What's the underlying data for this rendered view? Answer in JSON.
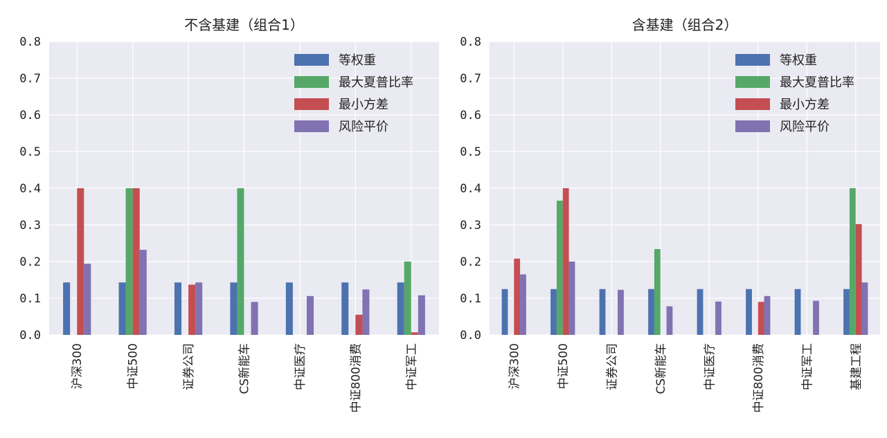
{
  "chart_data": [
    {
      "type": "bar",
      "title": "不含基建（组合1）",
      "categories": [
        "沪深300",
        "中证500",
        "证券公司",
        "CS新能车",
        "中证医疗",
        "中证800消费",
        "中证军工"
      ],
      "series": [
        {
          "name": "等权重",
          "color": "#4c72b0",
          "values": [
            0.143,
            0.143,
            0.143,
            0.143,
            0.143,
            0.143,
            0.143
          ]
        },
        {
          "name": "最大夏普比率",
          "color": "#55a868",
          "values": [
            0.0,
            0.4,
            0.0,
            0.4,
            0.0,
            0.0,
            0.2
          ]
        },
        {
          "name": "最小方差",
          "color": "#c44e52",
          "values": [
            0.4,
            0.4,
            0.137,
            0.0,
            0.0,
            0.055,
            0.007
          ]
        },
        {
          "name": "风险平价",
          "color": "#8172b2",
          "values": [
            0.194,
            0.232,
            0.143,
            0.09,
            0.106,
            0.124,
            0.108
          ]
        }
      ],
      "ylim": [
        0,
        0.8
      ],
      "yticks": [
        "0.0",
        "0.1",
        "0.2",
        "0.3",
        "0.4",
        "0.5",
        "0.6",
        "0.7",
        "0.8"
      ],
      "grid": true,
      "legend": "top-right"
    },
    {
      "type": "bar",
      "title": "含基建（组合2）",
      "categories": [
        "沪深300",
        "中证500",
        "证券公司",
        "CS新能车",
        "中证医疗",
        "中证800消费",
        "中证军工",
        "基建工程"
      ],
      "series": [
        {
          "name": "等权重",
          "color": "#4c72b0",
          "values": [
            0.125,
            0.125,
            0.125,
            0.125,
            0.125,
            0.125,
            0.125,
            0.125
          ]
        },
        {
          "name": "最大夏普比率",
          "color": "#55a868",
          "values": [
            0.0,
            0.366,
            0.0,
            0.234,
            0.0,
            0.0,
            0.0,
            0.4
          ]
        },
        {
          "name": "最小方差",
          "color": "#c44e52",
          "values": [
            0.208,
            0.4,
            0.0,
            0.0,
            0.0,
            0.09,
            0.0,
            0.302
          ]
        },
        {
          "name": "风险平价",
          "color": "#8172b2",
          "values": [
            0.165,
            0.2,
            0.123,
            0.078,
            0.091,
            0.106,
            0.093,
            0.143
          ]
        }
      ],
      "ylim": [
        0,
        0.8
      ],
      "yticks": [
        "0.0",
        "0.1",
        "0.2",
        "0.3",
        "0.4",
        "0.5",
        "0.6",
        "0.7",
        "0.8"
      ],
      "grid": true,
      "legend": "top-right"
    }
  ]
}
